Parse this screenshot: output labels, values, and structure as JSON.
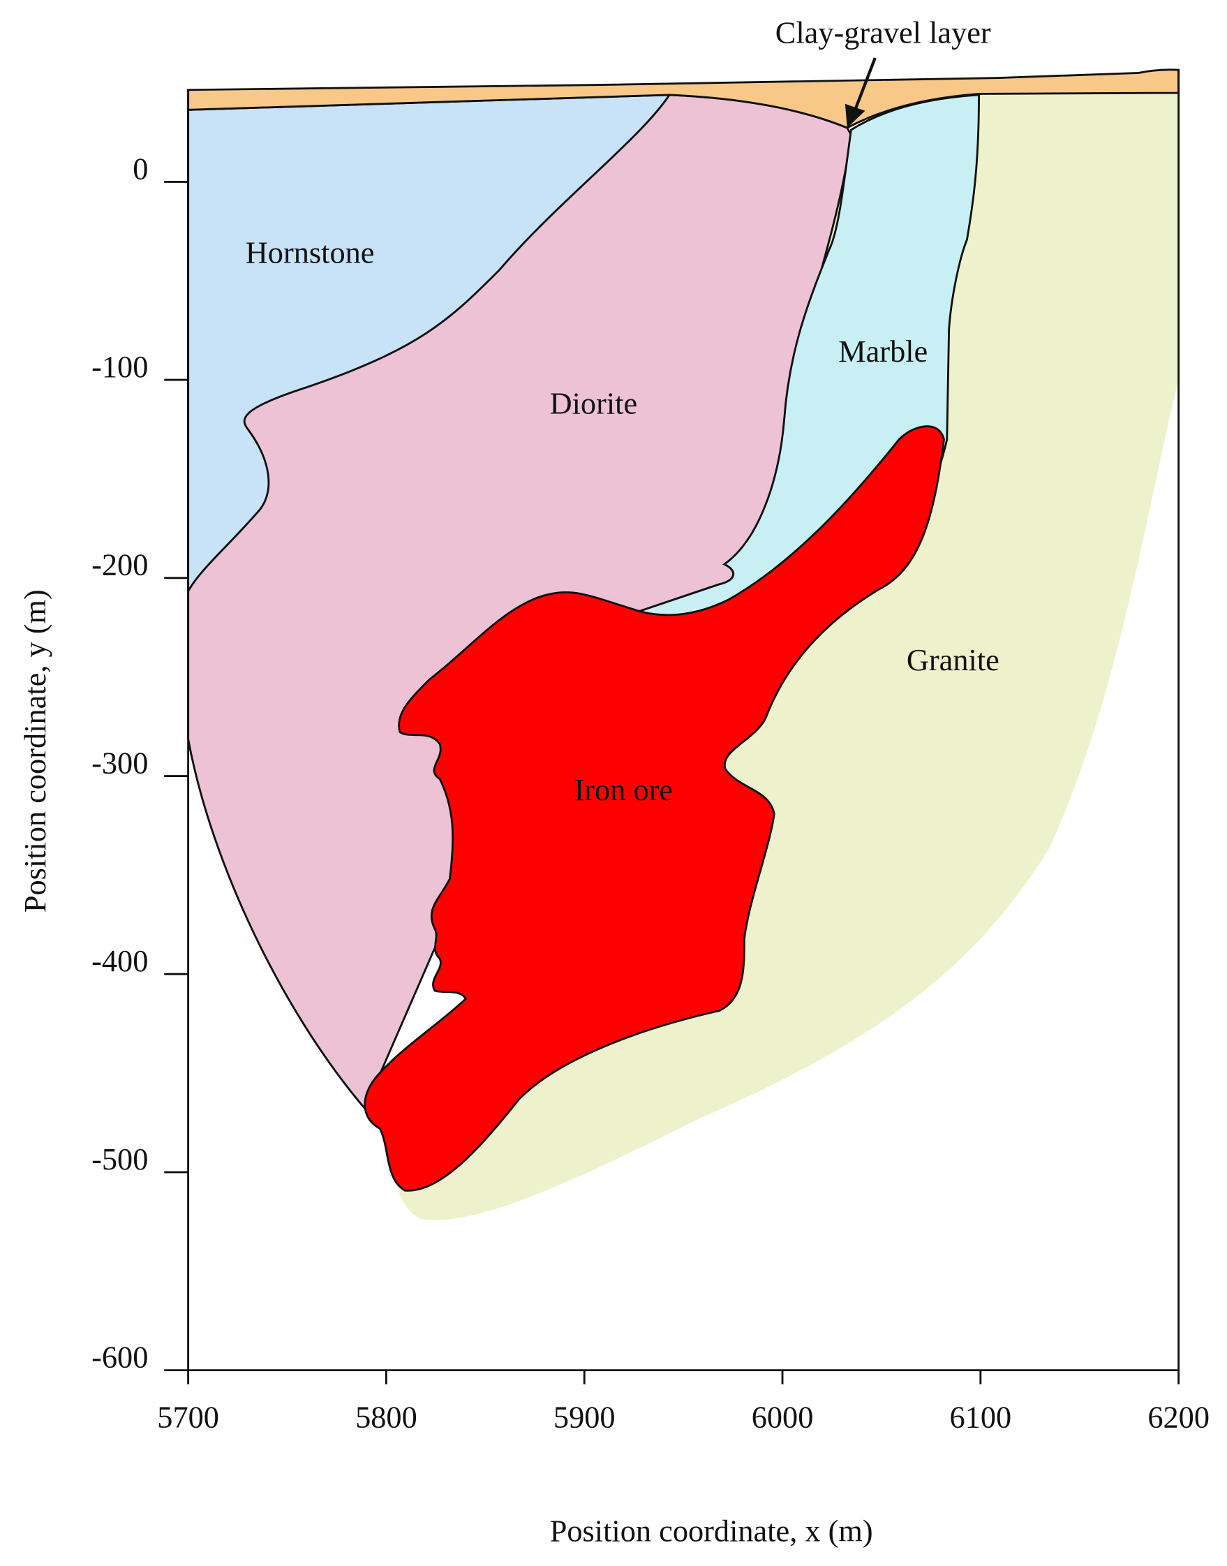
{
  "chart_data": {
    "type": "geologic-section",
    "x_label": "Position coordinate, x (m)",
    "y_label": "Position coordinate, y (m)",
    "xlim": [
      5700,
      6200
    ],
    "ylim": [
      -600,
      46
    ],
    "xticks": [
      5700,
      5800,
      5900,
      6000,
      6100,
      6200
    ],
    "yticks": [
      0,
      -100,
      -200,
      -300,
      -400,
      -500,
      -600
    ],
    "grid": false,
    "annotations": [
      "Clay-gravel layer",
      "Hornstone",
      "Diorite",
      "Marble",
      "Granite",
      "Iron ore"
    ]
  }
}
